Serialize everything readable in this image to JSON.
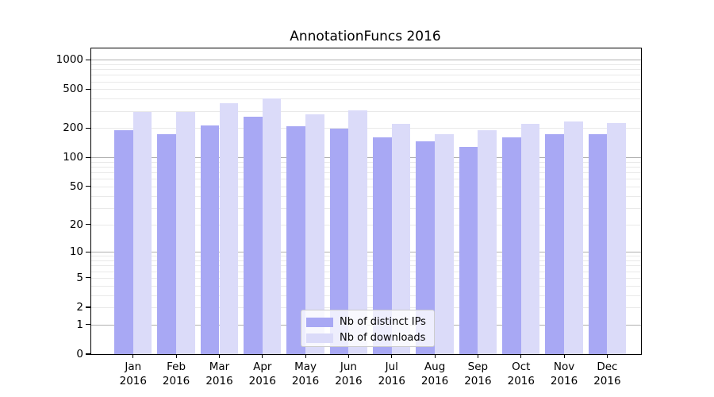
{
  "title": "AnnotationFuncs 2016",
  "chart_data": {
    "type": "bar",
    "title": "AnnotationFuncs 2016",
    "categories": [
      "Jan 2016",
      "Feb 2016",
      "Mar 2016",
      "Apr 2016",
      "May 2016",
      "Jun 2016",
      "Jul 2016",
      "Aug 2016",
      "Sep 2016",
      "Oct 2016",
      "Nov 2016",
      "Dec 2016"
    ],
    "series": [
      {
        "name": "Nb of distinct IPs",
        "color": "#a8a8f4",
        "values": [
          191,
          173,
          213,
          263,
          207,
          197,
          161,
          145,
          129,
          161,
          172,
          172
        ]
      },
      {
        "name": "Nb of downloads",
        "color": "#dbdbf9",
        "values": [
          295,
          292,
          356,
          400,
          279,
          306,
          222,
          173,
          189,
          220,
          232,
          224
        ]
      }
    ],
    "xlabel": "",
    "ylabel": "",
    "yscale": "log1p",
    "ylim": [
      0,
      1300
    ],
    "y_ticks": [
      0,
      1,
      2,
      5,
      10,
      20,
      50,
      100,
      200,
      500,
      1000
    ],
    "major_gridlines": [
      1,
      10,
      100,
      1000
    ],
    "grid": true,
    "legend_position": "inside lower-center"
  },
  "legend": {
    "items": [
      {
        "label": "Nb of distinct IPs",
        "color": "#a8a8f4"
      },
      {
        "label": "Nb of downloads",
        "color": "#dbdbf9"
      }
    ]
  },
  "colors": {
    "bar_distinct_ips": "#a8a8f4",
    "bar_downloads": "#dbdbf9",
    "grid_major": "#b0b0b0",
    "grid_minor": "#e9e9e9",
    "axis": "#000000",
    "background": "#ffffff"
  }
}
